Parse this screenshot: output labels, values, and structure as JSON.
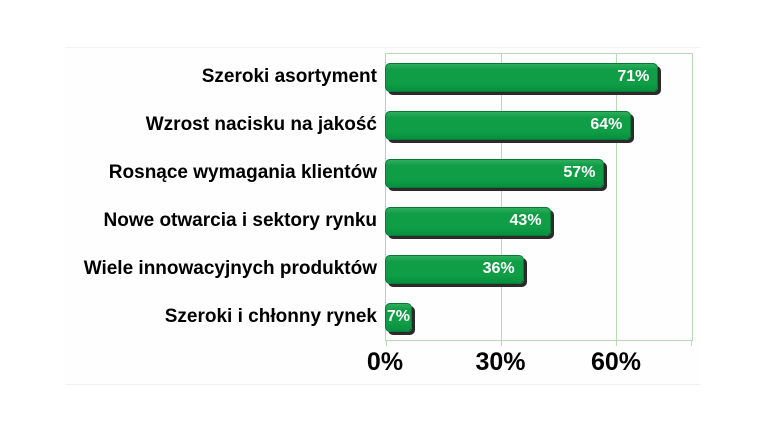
{
  "chart_data": {
    "type": "bar",
    "orientation": "horizontal",
    "title": "",
    "xlabel": "",
    "ylabel": "",
    "categories": [
      "Szeroki asortyment",
      "Wzrost nacisku na jakość",
      "Rosnące wymagania klientów",
      "Nowe otwarcia i sektory rynku",
      "Wiele innowacyjnych produktów",
      "Szeroki i chłonny rynek"
    ],
    "values": [
      71,
      64,
      57,
      43,
      36,
      7
    ],
    "value_labels": [
      "71%",
      "64%",
      "57%",
      "43%",
      "36%",
      "7%"
    ],
    "xlim": [
      0,
      80
    ],
    "xticks": [
      {
        "value": 0,
        "label": "0%"
      },
      {
        "value": 30,
        "label": "30%"
      },
      {
        "value": 60,
        "label": "60%"
      }
    ],
    "grid": true,
    "legend": false,
    "colors": {
      "background": "#ffffff",
      "bar": "#0f9d45",
      "bar_highlight": "#2fae5e",
      "bar_dark": "#089040",
      "bar_border": "#067a35",
      "bar_shadow": "#2b2b29",
      "grid_line": "#b8d9b4",
      "label_text": "#000000",
      "value_text": "#ffffff"
    }
  }
}
